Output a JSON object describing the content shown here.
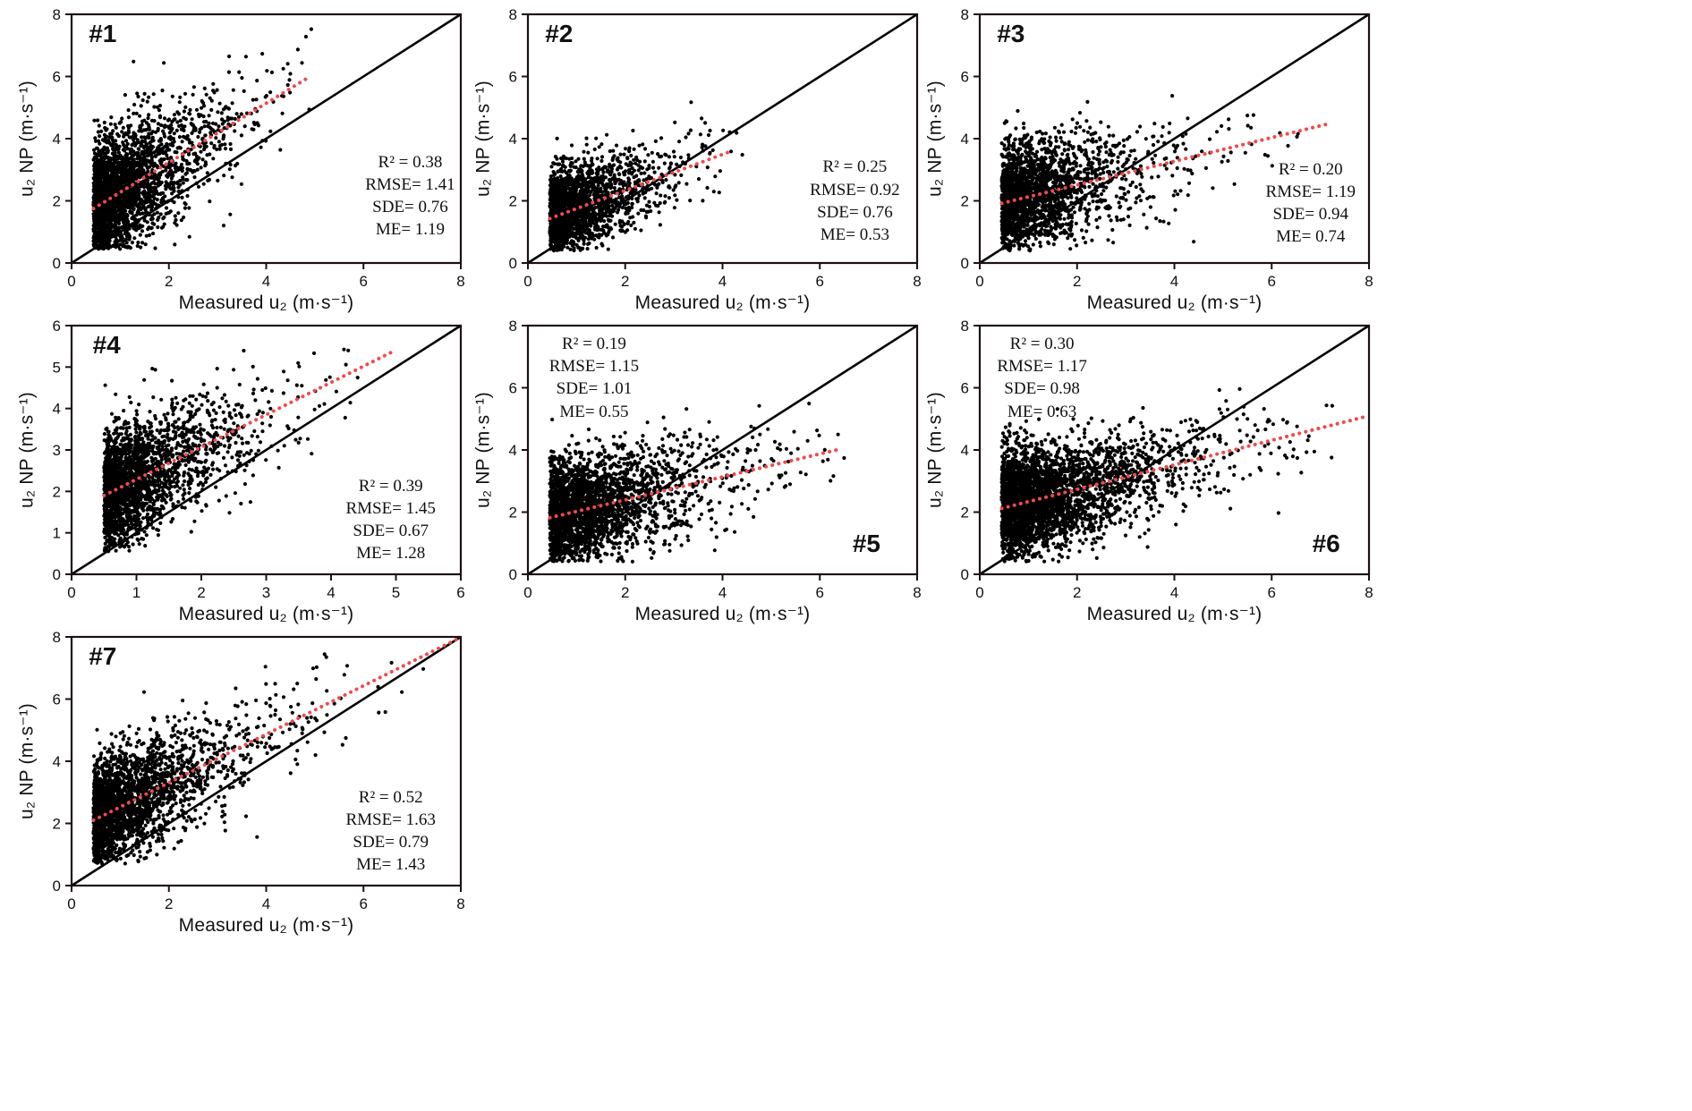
{
  "figure": {
    "background": "#ffffff"
  },
  "colors": {
    "point": "#000000",
    "identity_line": "#000000",
    "trend_line": "#f04a4a",
    "frame": "#1c1010",
    "text": "#111111"
  },
  "chart_data": [
    {
      "type": "scatter",
      "label": "#1",
      "xlabel": "Measured u₂ (m·s⁻¹)",
      "ylabel": "u₂ NP (m·s⁻¹)",
      "xlim": [
        0,
        8
      ],
      "ylim": [
        0,
        8
      ],
      "xticks": [
        0,
        2,
        4,
        6,
        8
      ],
      "yticks": [
        0,
        2,
        4,
        6,
        8
      ],
      "stats": {
        "R2": 0.38,
        "RMSE": 1.41,
        "SDE": 0.76,
        "ME": 1.19
      },
      "stats_lines": [
        "R² = 0.38",
        "RMSE= 1.41",
        "SDE= 0.76",
        "ME= 1.19"
      ],
      "identity_line": {
        "from": [
          0,
          0
        ],
        "to": [
          8,
          8
        ]
      },
      "trend_line": {
        "from": [
          0.45,
          1.75
        ],
        "to": [
          4.85,
          5.95
        ]
      },
      "points_model": {
        "n": 2600,
        "seed": 101,
        "x0": 0.45,
        "xscale": 0.8,
        "xmax": 5.0,
        "a": 1.32,
        "b": 0.955,
        "sd": 1.0,
        "ymin": 0.45,
        "ymax": 7.7
      },
      "label_pos": {
        "fx": 0.08,
        "fy": 0.02
      },
      "stats_pos": {
        "fx": 0.87,
        "fy": 0.55
      }
    },
    {
      "type": "scatter",
      "label": "#2",
      "xlabel": "Measured u₂ (m·s⁻¹)",
      "ylabel": "u₂ NP (m·s⁻¹)",
      "xlim": [
        0,
        8
      ],
      "ylim": [
        0,
        8
      ],
      "xticks": [
        0,
        2,
        4,
        6,
        8
      ],
      "yticks": [
        0,
        2,
        4,
        6,
        8
      ],
      "stats": {
        "R2": 0.25,
        "RMSE": 0.92,
        "SDE": 0.76,
        "ME": 0.53
      },
      "stats_lines": [
        "R² = 0.25",
        "RMSE= 0.92",
        "SDE= 0.76",
        "ME= 0.53"
      ],
      "identity_line": {
        "from": [
          0,
          0
        ],
        "to": [
          8,
          8
        ]
      },
      "trend_line": {
        "from": [
          0.45,
          1.43
        ],
        "to": [
          4.2,
          3.61
        ]
      },
      "points_model": {
        "n": 2000,
        "seed": 102,
        "x0": 0.45,
        "xscale": 0.7,
        "xmax": 4.5,
        "a": 1.17,
        "b": 0.58,
        "sd": 0.72,
        "ymin": 0.4,
        "ymax": 5.9
      },
      "label_pos": {
        "fx": 0.08,
        "fy": 0.02
      },
      "stats_pos": {
        "fx": 0.84,
        "fy": 0.57
      }
    },
    {
      "type": "scatter",
      "label": "#3",
      "xlabel": "Measured u₂ (m·s⁻¹)",
      "ylabel": "u₂ NP (m·s⁻¹)",
      "xlim": [
        0,
        8
      ],
      "ylim": [
        0,
        8
      ],
      "xticks": [
        0,
        2,
        4,
        6,
        8
      ],
      "yticks": [
        0,
        2,
        4,
        6,
        8
      ],
      "stats": {
        "R2": 0.2,
        "RMSE": 1.19,
        "SDE": 0.94,
        "ME": 0.74
      },
      "stats_lines": [
        "R² = 0.20",
        "RMSE= 1.19",
        "SDE= 0.94",
        "ME= 0.74"
      ],
      "identity_line": {
        "from": [
          0,
          0
        ],
        "to": [
          8,
          8
        ]
      },
      "trend_line": {
        "from": [
          0.45,
          1.92
        ],
        "to": [
          7.2,
          4.49
        ]
      },
      "points_model": {
        "n": 2200,
        "seed": 103,
        "x0": 0.45,
        "xscale": 0.9,
        "xmax": 7.3,
        "a": 1.75,
        "b": 0.38,
        "sd": 0.9,
        "ymin": 0.4,
        "ymax": 5.9
      },
      "label_pos": {
        "fx": 0.08,
        "fy": 0.02
      },
      "stats_pos": {
        "fx": 0.85,
        "fy": 0.58
      }
    },
    {
      "type": "scatter",
      "label": "#4",
      "xlabel": "Measured u₂ (m·s⁻¹)",
      "ylabel": "u₂ NP (m·s⁻¹)",
      "xlim": [
        0,
        6
      ],
      "ylim": [
        0,
        6
      ],
      "xticks": [
        0,
        1,
        2,
        3,
        4,
        5,
        6
      ],
      "yticks": [
        0,
        1,
        2,
        3,
        4,
        5,
        6
      ],
      "stats": {
        "R2": 0.39,
        "RMSE": 1.45,
        "SDE": 0.67,
        "ME": 1.28
      },
      "stats_lines": [
        "R² = 0.39",
        "RMSE= 1.45",
        "SDE= 0.67",
        "ME= 1.28"
      ],
      "identity_line": {
        "from": [
          0,
          0
        ],
        "to": [
          6,
          6
        ]
      },
      "trend_line": {
        "from": [
          0.5,
          1.9
        ],
        "to": [
          5.0,
          5.41
        ]
      },
      "points_model": {
        "n": 2300,
        "seed": 104,
        "x0": 0.5,
        "xscale": 0.65,
        "xmax": 5.0,
        "a": 1.51,
        "b": 0.78,
        "sd": 0.72,
        "ymin": 0.55,
        "ymax": 5.5
      },
      "label_pos": {
        "fx": 0.09,
        "fy": 0.02
      },
      "stats_pos": {
        "fx": 0.82,
        "fy": 0.6
      }
    },
    {
      "type": "scatter",
      "label": "#5",
      "xlabel": "Measured u₂ (m·s⁻¹)",
      "ylabel": "u₂ NP (m·s⁻¹)",
      "xlim": [
        0,
        8
      ],
      "ylim": [
        0,
        8
      ],
      "xticks": [
        0,
        2,
        4,
        6,
        8
      ],
      "yticks": [
        0,
        2,
        4,
        6,
        8
      ],
      "stats": {
        "R2": 0.19,
        "RMSE": 1.15,
        "SDE": 1.01,
        "ME": 0.55
      },
      "stats_lines": [
        "R² = 0.19",
        "RMSE= 1.15",
        "SDE= 1.01",
        "ME= 0.55"
      ],
      "identity_line": {
        "from": [
          0,
          0
        ],
        "to": [
          8,
          8
        ]
      },
      "trend_line": {
        "from": [
          0.45,
          1.82
        ],
        "to": [
          6.4,
          4.02
        ]
      },
      "points_model": {
        "n": 2600,
        "seed": 105,
        "x0": 0.45,
        "xscale": 1.05,
        "xmax": 6.5,
        "a": 1.65,
        "b": 0.37,
        "sd": 0.88,
        "ymin": 0.4,
        "ymax": 5.8
      },
      "label_pos": {
        "fx": 0.87,
        "fy": 0.82
      },
      "stats_pos": {
        "fx": 0.17,
        "fy": 0.03
      }
    },
    {
      "type": "scatter",
      "label": "#6",
      "xlabel": "Measured u₂ (m·s⁻¹)",
      "ylabel": "u₂ NP (m·s⁻¹)",
      "xlim": [
        0,
        8
      ],
      "ylim": [
        0,
        8
      ],
      "xticks": [
        0,
        2,
        4,
        6,
        8
      ],
      "yticks": [
        0,
        2,
        4,
        6,
        8
      ],
      "stats": {
        "R2": 0.3,
        "RMSE": 1.17,
        "SDE": 0.98,
        "ME": 0.63
      },
      "stats_lines": [
        "R² = 0.30",
        "RMSE= 1.17",
        "SDE= 0.98",
        "ME= 0.63"
      ],
      "identity_line": {
        "from": [
          0,
          0
        ],
        "to": [
          8,
          8
        ]
      },
      "trend_line": {
        "from": [
          0.45,
          2.12
        ],
        "to": [
          7.9,
          5.06
        ]
      },
      "points_model": {
        "n": 3200,
        "seed": 106,
        "x0": 0.45,
        "xscale": 1.15,
        "xmax": 7.8,
        "a": 1.94,
        "b": 0.395,
        "sd": 0.85,
        "ymin": 0.4,
        "ymax": 7.2
      },
      "label_pos": {
        "fx": 0.89,
        "fy": 0.82
      },
      "stats_pos": {
        "fx": 0.16,
        "fy": 0.03
      }
    },
    {
      "type": "scatter",
      "label": "#7",
      "xlabel": "Measured u₂ (m·s⁻¹)",
      "ylabel": "u₂ NP (m·s⁻¹)",
      "xlim": [
        0,
        8
      ],
      "ylim": [
        0,
        8
      ],
      "xticks": [
        0,
        2,
        4,
        6,
        8
      ],
      "yticks": [
        0,
        2,
        4,
        6,
        8
      ],
      "stats": {
        "R2": 0.52,
        "RMSE": 1.63,
        "SDE": 0.79,
        "ME": 1.43
      },
      "stats_lines": [
        "R² = 0.52",
        "RMSE= 1.63",
        "SDE= 0.79",
        "ME= 1.43"
      ],
      "identity_line": {
        "from": [
          0,
          0
        ],
        "to": [
          8,
          8
        ]
      },
      "trend_line": {
        "from": [
          0.45,
          2.1
        ],
        "to": [
          7.9,
          7.91
        ]
      },
      "points_model": {
        "n": 2300,
        "seed": 107,
        "x0": 0.45,
        "xscale": 0.95,
        "xmax": 7.9,
        "a": 1.75,
        "b": 0.78,
        "sd": 0.9,
        "ymin": 0.7,
        "ymax": 7.9
      },
      "label_pos": {
        "fx": 0.08,
        "fy": 0.02
      },
      "stats_pos": {
        "fx": 0.82,
        "fy": 0.6
      }
    }
  ]
}
